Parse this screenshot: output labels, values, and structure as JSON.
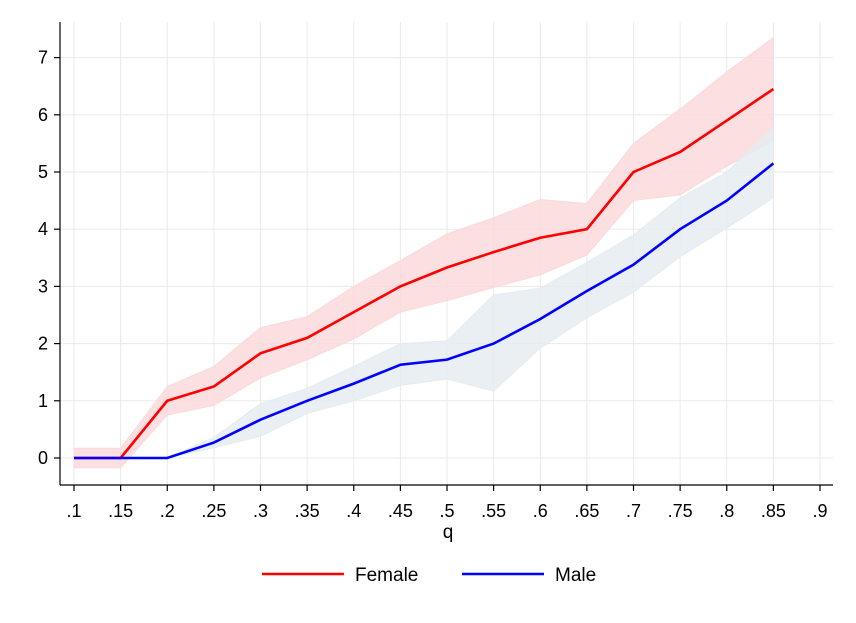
{
  "chart_data": {
    "type": "line",
    "title": "",
    "xlabel": "q",
    "ylabel": "",
    "x": [
      0.1,
      0.15,
      0.2,
      0.25,
      0.3,
      0.35,
      0.4,
      0.45,
      0.5,
      0.55,
      0.6,
      0.65,
      0.7,
      0.75,
      0.8,
      0.85
    ],
    "xticks": [
      ".1",
      ".15",
      ".2",
      ".25",
      ".3",
      ".35",
      ".4",
      ".45",
      ".5",
      ".55",
      ".6",
      ".65",
      ".7",
      ".75",
      ".8",
      ".85",
      ".9"
    ],
    "xlim": [
      0.1,
      0.9
    ],
    "yticks": [
      "0",
      "1",
      "2",
      "3",
      "4",
      "5",
      "6",
      "7"
    ],
    "ylim": [
      -0.45,
      7.7
    ],
    "grid": true,
    "legend_position": "bottom",
    "series": [
      {
        "name": "Female",
        "color": "#ff0000",
        "band_color": "#fbd9dc",
        "values": [
          0,
          0,
          1.0,
          1.25,
          1.83,
          2.1,
          2.55,
          3.0,
          3.33,
          3.6,
          3.85,
          4.0,
          5.0,
          5.35,
          5.9,
          6.45
        ],
        "ci_low": [
          -0.17,
          -0.17,
          0.75,
          0.92,
          1.4,
          1.72,
          2.08,
          2.55,
          2.75,
          2.98,
          3.2,
          3.55,
          4.5,
          4.6,
          5.1,
          5.55
        ],
        "ci_high": [
          0.17,
          0.17,
          1.25,
          1.6,
          2.28,
          2.47,
          3.0,
          3.45,
          3.92,
          4.2,
          4.52,
          4.45,
          5.5,
          6.1,
          6.75,
          7.35
        ]
      },
      {
        "name": "Male",
        "color": "#0000ff",
        "band_color": "#e5ecf0",
        "values": [
          0,
          0,
          0,
          0.27,
          0.67,
          1.0,
          1.3,
          1.63,
          1.72,
          2.0,
          2.43,
          2.92,
          3.38,
          4.0,
          4.5,
          5.15
        ],
        "ci_low": [
          0,
          0,
          0,
          0.18,
          0.38,
          0.78,
          1.0,
          1.27,
          1.38,
          1.17,
          1.92,
          2.45,
          2.9,
          3.52,
          4.02,
          4.55
        ],
        "ci_high": [
          0,
          0,
          0,
          0.36,
          0.95,
          1.22,
          1.6,
          2.0,
          2.05,
          2.85,
          2.97,
          3.42,
          3.9,
          4.55,
          5.0,
          5.78
        ]
      }
    ]
  }
}
